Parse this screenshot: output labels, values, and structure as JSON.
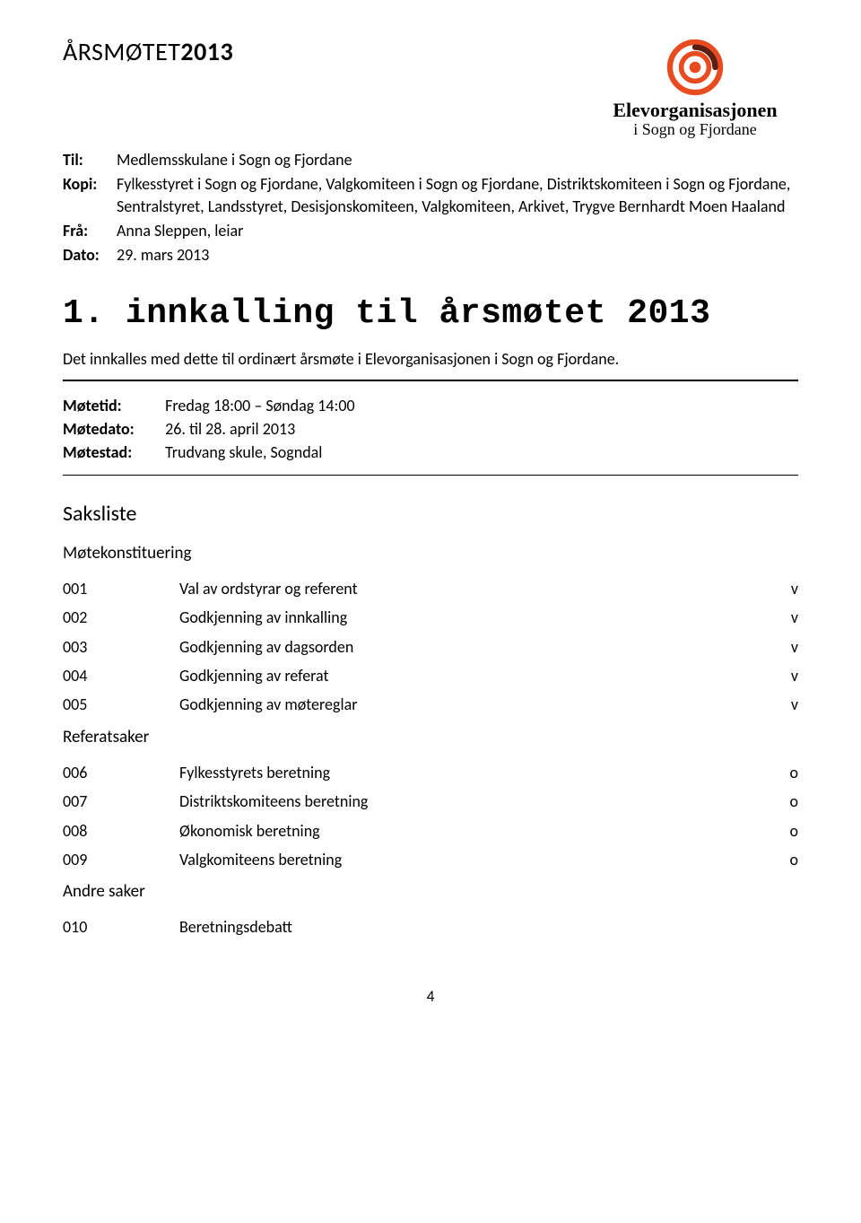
{
  "header": {
    "title_prefix": "ÅRSMØTET",
    "title_year": "2013"
  },
  "logo": {
    "main": "Elevorganisasjonen",
    "sub": "i Sogn og Fjordane",
    "accent_color": "#e84b1f",
    "dark_accent": "#5a1f12"
  },
  "meta": {
    "til_label": "Til:",
    "til_value": "Medlemsskulane i Sogn og Fjordane",
    "kopi_label": "Kopi:",
    "kopi_value": "Fylkesstyret i Sogn og Fjordane, Valgkomiteen i Sogn og Fjordane, Distriktskomiteen i Sogn og Fjordane, Sentralstyret, Landsstyret, Desisjonskomiteen, Valgkomiteen, Arkivet, Trygve Bernhardt Moen Haaland",
    "fra_label": "Frå:",
    "fra_value": "Anna Sleppen, leiar",
    "dato_label": "Dato:",
    "dato_value": "29. mars 2013"
  },
  "main_heading": "1. innkalling til årsmøtet 2013",
  "intro": "Det innkalles med dette til ordinært årsmøte i Elevorganisasjonen i Sogn og Fjordane.",
  "meeting": {
    "tid_label": "Møtetid:",
    "tid_value": "Fredag 18:00 – Søndag 14:00",
    "dato_label": "Møtedato:",
    "dato_value": "26. til 28. april 2013",
    "stad_label": "Møtestad:",
    "stad_value": "Trudvang skule, Sogndal"
  },
  "saksliste_heading": "Saksliste",
  "sections": [
    {
      "label": "Møtekonstituering"
    },
    {
      "label": "Referatsaker"
    },
    {
      "label": "Andre saker"
    }
  ],
  "items_a": [
    {
      "num": "001",
      "text": "Val av ordstyrar og referent",
      "mark": "v"
    },
    {
      "num": "002",
      "text": "Godkjenning av innkalling",
      "mark": "v"
    },
    {
      "num": "003",
      "text": "Godkjenning av dagsorden",
      "mark": "v"
    },
    {
      "num": "004",
      "text": "Godkjenning av referat",
      "mark": "v"
    },
    {
      "num": "005",
      "text": "Godkjenning av møtereglar",
      "mark": "v"
    }
  ],
  "items_b": [
    {
      "num": "006",
      "text": "Fylkesstyrets beretning",
      "mark": "o"
    },
    {
      "num": "007",
      "text": "Distriktskomiteens beretning",
      "mark": "o"
    },
    {
      "num": "008",
      "text": "Økonomisk beretning",
      "mark": "o"
    },
    {
      "num": "009",
      "text": "Valgkomiteens beretning",
      "mark": "o"
    }
  ],
  "items_c": [
    {
      "num": "010",
      "text": "Beretningsdebatt",
      "mark": ""
    }
  ],
  "page_number": "4"
}
